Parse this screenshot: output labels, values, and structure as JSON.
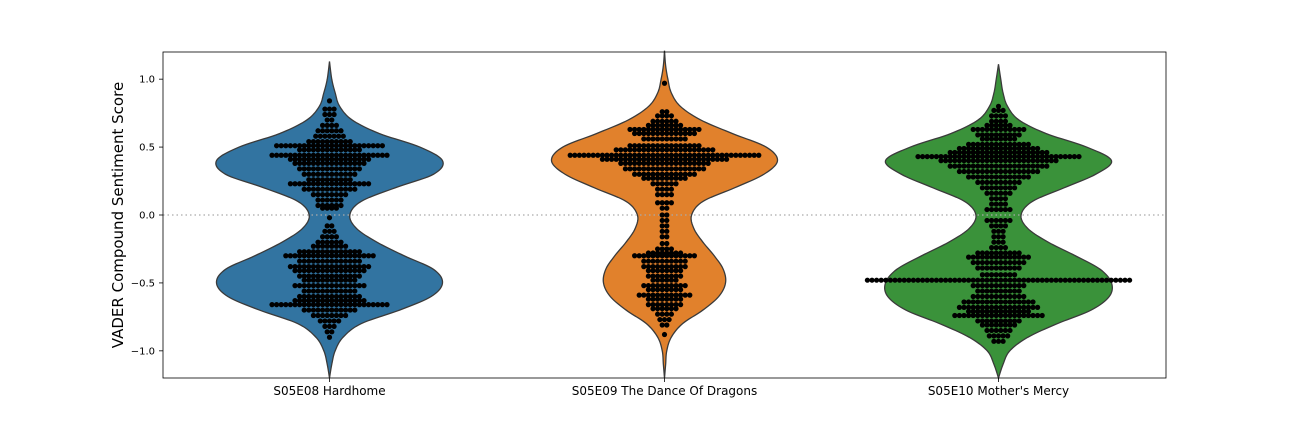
{
  "chart_data": {
    "type": "violin",
    "title": "",
    "xlabel": "",
    "ylabel": "VADER Compound Sentiment Score",
    "ylim": [
      -1.2,
      1.2
    ],
    "yticks": [
      -1.0,
      -0.5,
      0.0,
      0.5,
      1.0
    ],
    "ytick_labels": [
      "−1.0",
      "−0.5",
      "0.0",
      "0.5",
      "1.0"
    ],
    "reference_line": {
      "y": 0.0,
      "style": "dotted",
      "color": "#aaaaaa"
    },
    "grid": false,
    "categories": [
      "S05E08 Hardhome",
      "S05E09 The Dance Of Dragons",
      "S05E10 Mother's Mercy"
    ],
    "series": [
      {
        "category": "S05E08 Hardhome",
        "color": "#3274a1",
        "extent": [
          -1.2,
          1.13
        ],
        "density": [
          [
            -1.2,
            0.0
          ],
          [
            -1.1,
            0.02
          ],
          [
            -1.0,
            0.05
          ],
          [
            -0.9,
            0.12
          ],
          [
            -0.8,
            0.28
          ],
          [
            -0.7,
            0.62
          ],
          [
            -0.6,
            0.9
          ],
          [
            -0.5,
            1.0
          ],
          [
            -0.4,
            0.92
          ],
          [
            -0.3,
            0.66
          ],
          [
            -0.2,
            0.42
          ],
          [
            -0.1,
            0.24
          ],
          [
            0.0,
            0.18
          ],
          [
            0.1,
            0.28
          ],
          [
            0.2,
            0.58
          ],
          [
            0.3,
            0.92
          ],
          [
            0.4,
            1.0
          ],
          [
            0.5,
            0.8
          ],
          [
            0.6,
            0.44
          ],
          [
            0.7,
            0.2
          ],
          [
            0.8,
            0.09
          ],
          [
            0.9,
            0.05
          ],
          [
            1.0,
            0.02
          ],
          [
            1.13,
            0.0
          ]
        ],
        "points": [
          [
            0.84,
            1
          ],
          [
            0.78,
            3
          ],
          [
            0.74,
            3
          ],
          [
            0.7,
            2
          ],
          [
            0.66,
            4
          ],
          [
            0.62,
            6
          ],
          [
            0.58,
            7
          ],
          [
            0.54,
            10
          ],
          [
            0.51,
            24
          ],
          [
            0.48,
            14
          ],
          [
            0.44,
            26
          ],
          [
            0.41,
            18
          ],
          [
            0.38,
            16
          ],
          [
            0.34,
            14
          ],
          [
            0.3,
            12
          ],
          [
            0.26,
            10
          ],
          [
            0.23,
            18
          ],
          [
            0.19,
            12
          ],
          [
            0.15,
            8
          ],
          [
            0.11,
            6
          ],
          [
            0.07,
            6
          ],
          [
            0.05,
            4
          ],
          [
            -0.02,
            1
          ],
          [
            -0.08,
            2
          ],
          [
            -0.12,
            3
          ],
          [
            -0.16,
            4
          ],
          [
            -0.2,
            6
          ],
          [
            -0.23,
            8
          ],
          [
            -0.27,
            14
          ],
          [
            -0.3,
            20
          ],
          [
            -0.34,
            14
          ],
          [
            -0.38,
            18
          ],
          [
            -0.41,
            16
          ],
          [
            -0.45,
            14
          ],
          [
            -0.48,
            12
          ],
          [
            -0.52,
            16
          ],
          [
            -0.56,
            12
          ],
          [
            -0.6,
            14
          ],
          [
            -0.63,
            16
          ],
          [
            -0.66,
            26
          ],
          [
            -0.7,
            12
          ],
          [
            -0.74,
            8
          ],
          [
            -0.78,
            5
          ],
          [
            -0.82,
            3
          ],
          [
            -0.86,
            2
          ],
          [
            -0.9,
            1
          ]
        ]
      },
      {
        "category": "S05E09 The Dance Of Dragons",
        "color": "#e1812c",
        "extent": [
          -1.2,
          1.21
        ],
        "density": [
          [
            -1.2,
            0.0
          ],
          [
            -1.1,
            0.01
          ],
          [
            -1.0,
            0.02
          ],
          [
            -0.9,
            0.06
          ],
          [
            -0.8,
            0.16
          ],
          [
            -0.7,
            0.34
          ],
          [
            -0.6,
            0.48
          ],
          [
            -0.5,
            0.54
          ],
          [
            -0.4,
            0.52
          ],
          [
            -0.3,
            0.44
          ],
          [
            -0.2,
            0.34
          ],
          [
            -0.1,
            0.26
          ],
          [
            0.0,
            0.24
          ],
          [
            0.1,
            0.34
          ],
          [
            0.2,
            0.62
          ],
          [
            0.3,
            0.88
          ],
          [
            0.4,
            1.0
          ],
          [
            0.5,
            0.9
          ],
          [
            0.6,
            0.6
          ],
          [
            0.7,
            0.32
          ],
          [
            0.8,
            0.14
          ],
          [
            0.9,
            0.06
          ],
          [
            1.0,
            0.03
          ],
          [
            1.1,
            0.01
          ],
          [
            1.21,
            0.0
          ]
        ],
        "points": [
          [
            0.97,
            1
          ],
          [
            0.76,
            2
          ],
          [
            0.73,
            4
          ],
          [
            0.69,
            6
          ],
          [
            0.66,
            8
          ],
          [
            0.63,
            16
          ],
          [
            0.6,
            14
          ],
          [
            0.56,
            10
          ],
          [
            0.51,
            16
          ],
          [
            0.48,
            22
          ],
          [
            0.44,
            42
          ],
          [
            0.41,
            28
          ],
          [
            0.38,
            20
          ],
          [
            0.34,
            18
          ],
          [
            0.3,
            14
          ],
          [
            0.27,
            10
          ],
          [
            0.23,
            6
          ],
          [
            0.19,
            4
          ],
          [
            0.15,
            4
          ],
          [
            0.09,
            4
          ],
          [
            0.05,
            2
          ],
          [
            0.0,
            2
          ],
          [
            -0.04,
            2
          ],
          [
            -0.08,
            2
          ],
          [
            -0.12,
            2
          ],
          [
            -0.16,
            2
          ],
          [
            -0.21,
            2
          ],
          [
            -0.25,
            4
          ],
          [
            -0.28,
            8
          ],
          [
            -0.3,
            14
          ],
          [
            -0.34,
            10
          ],
          [
            -0.38,
            10
          ],
          [
            -0.41,
            8
          ],
          [
            -0.45,
            8
          ],
          [
            -0.48,
            6
          ],
          [
            -0.52,
            10
          ],
          [
            -0.55,
            8
          ],
          [
            -0.59,
            12
          ],
          [
            -0.62,
            8
          ],
          [
            -0.66,
            8
          ],
          [
            -0.69,
            6
          ],
          [
            -0.73,
            4
          ],
          [
            -0.77,
            3
          ],
          [
            -0.81,
            2
          ],
          [
            -0.88,
            1
          ]
        ]
      },
      {
        "category": "S05E10 Mother's Mercy",
        "color": "#3a923a",
        "extent": [
          -1.2,
          1.11
        ],
        "density": [
          [
            -1.2,
            0.0
          ],
          [
            -1.1,
            0.04
          ],
          [
            -1.0,
            0.1
          ],
          [
            -0.9,
            0.26
          ],
          [
            -0.8,
            0.52
          ],
          [
            -0.7,
            0.82
          ],
          [
            -0.6,
            0.98
          ],
          [
            -0.5,
            1.0
          ],
          [
            -0.4,
            0.9
          ],
          [
            -0.3,
            0.68
          ],
          [
            -0.2,
            0.44
          ],
          [
            -0.1,
            0.26
          ],
          [
            0.0,
            0.2
          ],
          [
            0.1,
            0.3
          ],
          [
            0.2,
            0.58
          ],
          [
            0.3,
            0.86
          ],
          [
            0.4,
            1.0
          ],
          [
            0.5,
            0.78
          ],
          [
            0.6,
            0.42
          ],
          [
            0.7,
            0.18
          ],
          [
            0.8,
            0.08
          ],
          [
            0.9,
            0.04
          ],
          [
            1.0,
            0.02
          ],
          [
            1.11,
            0.0
          ]
        ],
        "points": [
          [
            0.8,
            1
          ],
          [
            0.77,
            3
          ],
          [
            0.73,
            4
          ],
          [
            0.69,
            4
          ],
          [
            0.66,
            6
          ],
          [
            0.63,
            12
          ],
          [
            0.59,
            10
          ],
          [
            0.56,
            8
          ],
          [
            0.52,
            14
          ],
          [
            0.49,
            18
          ],
          [
            0.46,
            22
          ],
          [
            0.43,
            36
          ],
          [
            0.4,
            26
          ],
          [
            0.36,
            22
          ],
          [
            0.32,
            18
          ],
          [
            0.28,
            14
          ],
          [
            0.24,
            10
          ],
          [
            0.2,
            8
          ],
          [
            0.16,
            6
          ],
          [
            0.12,
            4
          ],
          [
            0.08,
            4
          ],
          [
            0.04,
            6
          ],
          [
            -0.04,
            6
          ],
          [
            -0.08,
            4
          ],
          [
            -0.12,
            3
          ],
          [
            -0.16,
            3
          ],
          [
            -0.2,
            3
          ],
          [
            -0.24,
            4
          ],
          [
            -0.28,
            10
          ],
          [
            -0.31,
            14
          ],
          [
            -0.35,
            12
          ],
          [
            -0.39,
            10
          ],
          [
            -0.44,
            8
          ],
          [
            -0.48,
            58
          ],
          [
            -0.52,
            12
          ],
          [
            -0.56,
            10
          ],
          [
            -0.6,
            12
          ],
          [
            -0.64,
            16
          ],
          [
            -0.68,
            18
          ],
          [
            -0.71,
            14
          ],
          [
            -0.74,
            20
          ],
          [
            -0.78,
            10
          ],
          [
            -0.81,
            8
          ],
          [
            -0.85,
            6
          ],
          [
            -0.89,
            5
          ],
          [
            -0.93,
            3
          ]
        ]
      }
    ]
  }
}
